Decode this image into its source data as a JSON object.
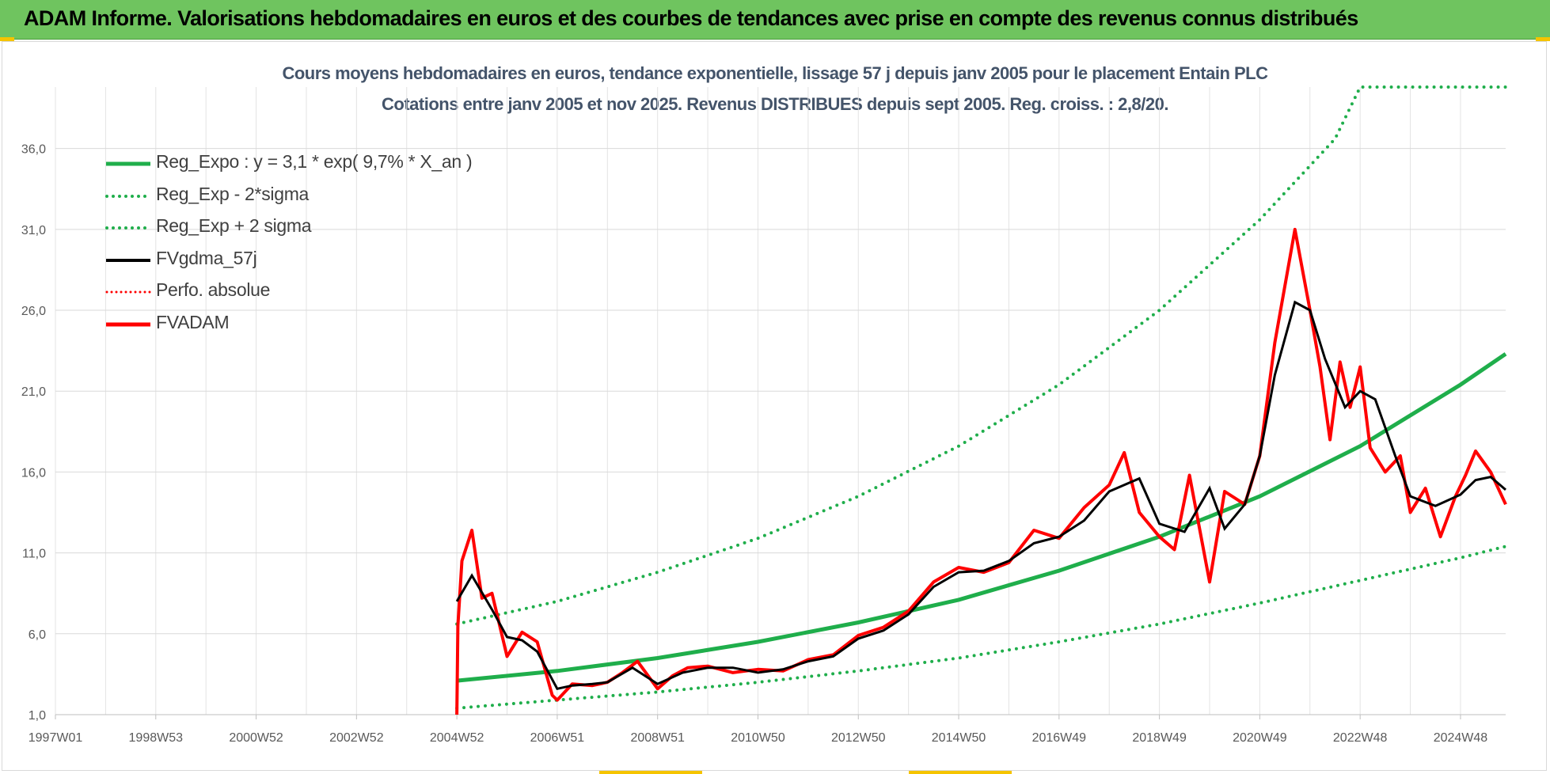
{
  "banner": {
    "title": "ADAM Informe. Valorisations hebdomadaires en euros et des courbes de tendances avec prise en compte des revenus connus distribués"
  },
  "colors": {
    "banner_bg": "#6fc45f",
    "trend_green": "#1fae4b",
    "smooth_black": "#000000",
    "adam_red": "#ff0000",
    "grid": "#d9d9d9",
    "title_text": "#44546a"
  },
  "chart_data": {
    "type": "line",
    "title": "Cours moyens hebdomadaires en euros, tendance exponentielle, lissage 57 j depuis janv 2005 pour le placement Entain PLC",
    "subtitle": "Cotations entre janv 2005 et nov 2025. Revenus DISTRIBUES depuis sept 2005. Reg. croiss. : 2,8/20.",
    "xlabel": "",
    "ylabel": "",
    "x_range_years": [
      1997.0,
      2025.9
    ],
    "ylim": [
      1.0,
      39.8
    ],
    "y_ticks": [
      "1,0",
      "6,0",
      "11,0",
      "16,0",
      "21,0",
      "26,0",
      "31,0",
      "36,0"
    ],
    "y_tick_values": [
      1,
      6,
      11,
      16,
      21,
      26,
      31,
      36
    ],
    "x_tick_labels": [
      "1997W01",
      "1998W53",
      "2000W52",
      "2002W52",
      "2004W52",
      "2006W51",
      "2008W51",
      "2010W50",
      "2012W50",
      "2014W50",
      "2016W49",
      "2018W49",
      "2020W49",
      "2022W48",
      "2024W48"
    ],
    "x_tick_years": [
      1997.0,
      1999.0,
      2001.0,
      2003.0,
      2005.0,
      2007.0,
      2009.0,
      2011.0,
      2013.0,
      2015.0,
      2017.0,
      2019.0,
      2021.0,
      2023.0,
      2025.0
    ],
    "grid": true,
    "legend_position": "top-left",
    "series": [
      {
        "name": "Reg_Expo : y = 3,1 * exp( 9,7% *  X_an )",
        "style": "solid-green",
        "x": [
          2005.0,
          2007.0,
          2009.0,
          2011.0,
          2013.0,
          2015.0,
          2017.0,
          2019.0,
          2021.0,
          2023.0,
          2025.0,
          2025.9
        ],
        "y": [
          3.1,
          3.7,
          4.5,
          5.5,
          6.7,
          8.1,
          9.9,
          12.0,
          14.5,
          17.6,
          21.4,
          23.3
        ]
      },
      {
        "name": "Reg_Exp - 2*sigma",
        "style": "dotted-green",
        "x": [
          2005.0,
          2007.0,
          2009.0,
          2011.0,
          2013.0,
          2015.0,
          2017.0,
          2019.0,
          2021.0,
          2023.0,
          2025.0,
          2025.9
        ],
        "y": [
          1.4,
          1.9,
          2.4,
          3.0,
          3.7,
          4.5,
          5.5,
          6.6,
          7.9,
          9.3,
          10.7,
          11.4
        ]
      },
      {
        "name": "Reg_Exp + 2 sigma",
        "style": "dotted-green",
        "x": [
          2005.0,
          2007.0,
          2009.0,
          2011.0,
          2013.0,
          2015.0,
          2017.0,
          2019.0,
          2021.0,
          2022.5,
          2023.0,
          2025.9
        ],
        "y": [
          6.6,
          8.0,
          9.8,
          11.9,
          14.5,
          17.6,
          21.4,
          26.0,
          31.6,
          36.6,
          39.8,
          39.8
        ]
      },
      {
        "name": "FVgdma_57j",
        "style": "solid-black",
        "x": [
          2005.0,
          2005.3,
          2005.7,
          2006.0,
          2006.3,
          2006.6,
          2007.0,
          2007.3,
          2007.7,
          2008.0,
          2008.5,
          2009.0,
          2009.5,
          2010.0,
          2010.5,
          2011.0,
          2011.5,
          2012.0,
          2012.5,
          2013.0,
          2013.5,
          2014.0,
          2014.5,
          2015.0,
          2015.5,
          2016.0,
          2016.5,
          2017.0,
          2017.5,
          2018.0,
          2018.3,
          2018.6,
          2019.0,
          2019.5,
          2020.0,
          2020.3,
          2020.7,
          2021.0,
          2021.3,
          2021.7,
          2022.0,
          2022.3,
          2022.7,
          2023.0,
          2023.3,
          2023.7,
          2024.0,
          2024.5,
          2025.0,
          2025.3,
          2025.6,
          2025.9
        ],
        "y": [
          8.0,
          9.6,
          7.5,
          5.8,
          5.6,
          4.9,
          2.6,
          2.8,
          2.9,
          3.0,
          3.9,
          2.9,
          3.6,
          3.9,
          3.9,
          3.6,
          3.8,
          4.3,
          4.6,
          5.7,
          6.2,
          7.2,
          8.9,
          9.8,
          9.9,
          10.5,
          11.6,
          12.0,
          13.0,
          14.8,
          15.2,
          15.6,
          12.8,
          12.3,
          15.0,
          12.5,
          14.0,
          17.0,
          22.0,
          26.5,
          26.0,
          23.0,
          20.0,
          21.0,
          20.5,
          17.0,
          14.5,
          13.9,
          14.6,
          15.5,
          15.7,
          14.9
        ]
      },
      {
        "name": "Perfo. absolue",
        "style": "dotted-red",
        "x": [],
        "y": []
      },
      {
        "name": "FVADAM",
        "style": "solid-red",
        "x": [
          2005.0,
          2005.02,
          2005.1,
          2005.3,
          2005.5,
          2005.7,
          2006.0,
          2006.3,
          2006.6,
          2006.9,
          2007.0,
          2007.3,
          2007.7,
          2008.0,
          2008.3,
          2008.6,
          2009.0,
          2009.3,
          2009.6,
          2010.0,
          2010.5,
          2011.0,
          2011.5,
          2012.0,
          2012.5,
          2013.0,
          2013.5,
          2014.0,
          2014.5,
          2015.0,
          2015.5,
          2016.0,
          2016.5,
          2017.0,
          2017.5,
          2018.0,
          2018.3,
          2018.6,
          2019.0,
          2019.3,
          2019.6,
          2020.0,
          2020.3,
          2020.7,
          2021.0,
          2021.3,
          2021.7,
          2022.0,
          2022.2,
          2022.4,
          2022.6,
          2022.8,
          2023.0,
          2023.2,
          2023.5,
          2023.8,
          2024.0,
          2024.3,
          2024.6,
          2024.9,
          2025.1,
          2025.3,
          2025.6,
          2025.9
        ],
        "y": [
          1.0,
          6.5,
          10.5,
          12.4,
          8.2,
          8.5,
          4.6,
          6.1,
          5.5,
          2.2,
          1.9,
          2.9,
          2.8,
          3.0,
          3.6,
          4.3,
          2.6,
          3.4,
          3.9,
          4.0,
          3.6,
          3.8,
          3.7,
          4.4,
          4.7,
          5.9,
          6.4,
          7.4,
          9.2,
          10.1,
          9.8,
          10.4,
          12.4,
          11.9,
          13.8,
          15.2,
          17.2,
          13.5,
          12.0,
          11.2,
          15.8,
          9.2,
          14.8,
          14.0,
          17.0,
          24.0,
          31.0,
          26.0,
          22.5,
          18.0,
          22.8,
          20.0,
          22.5,
          17.5,
          16.0,
          17.0,
          13.5,
          15.0,
          12.0,
          14.5,
          15.8,
          17.3,
          16.0,
          14.0
        ]
      }
    ]
  }
}
